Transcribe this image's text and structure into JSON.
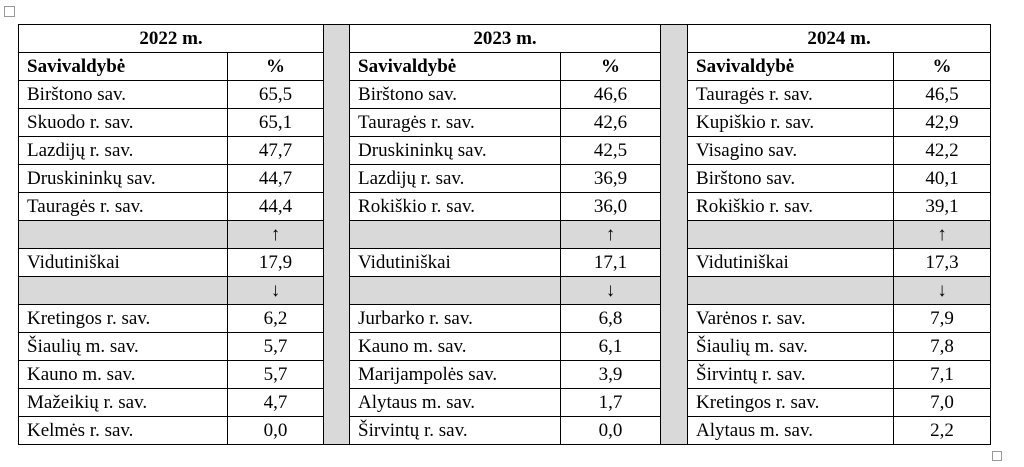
{
  "blocks": [
    {
      "year": "2022 m.",
      "headers": [
        "Savivaldybė",
        "%"
      ],
      "top": [
        [
          "Birštono sav.",
          "65,5"
        ],
        [
          "Skuodo r. sav.",
          "65,1"
        ],
        [
          "Lazdijų r. sav.",
          "47,7"
        ],
        [
          "Druskininkų sav.",
          "44,7"
        ],
        [
          "Tauragės r. sav.",
          "44,4"
        ]
      ],
      "arrow_up": "↑",
      "average": [
        "Vidutiniškai",
        "17,9"
      ],
      "arrow_down": "↓",
      "bottom": [
        [
          "Kretingos r. sav.",
          "6,2"
        ],
        [
          "Šiaulių m. sav.",
          "5,7"
        ],
        [
          "Kauno m. sav.",
          "5,7"
        ],
        [
          "Mažeikių r. sav.",
          "4,7"
        ],
        [
          "Kelmės r. sav.",
          "0,0"
        ]
      ]
    },
    {
      "year": "2023 m.",
      "headers": [
        "Savivaldybė",
        "%"
      ],
      "top": [
        [
          "Birštono sav.",
          "46,6"
        ],
        [
          "Tauragės r. sav.",
          "42,6"
        ],
        [
          "Druskininkų sav.",
          "42,5"
        ],
        [
          "Lazdijų r. sav.",
          "36,9"
        ],
        [
          "Rokiškio r. sav.",
          "36,0"
        ]
      ],
      "arrow_up": "↑",
      "average": [
        "Vidutiniškai",
        "17,1"
      ],
      "arrow_down": "↓",
      "bottom": [
        [
          "Jurbarko r. sav.",
          "6,8"
        ],
        [
          "Kauno m. sav.",
          "6,1"
        ],
        [
          "Marijampolės sav.",
          "3,9"
        ],
        [
          "Alytaus m. sav.",
          "1,7"
        ],
        [
          "Širvintų r. sav.",
          "0,0"
        ]
      ]
    },
    {
      "year": "2024 m.",
      "headers": [
        "Savivaldybė",
        "%"
      ],
      "top": [
        [
          "Tauragės r. sav.",
          "46,5"
        ],
        [
          "Kupiškio r. sav.",
          "42,9"
        ],
        [
          "Visagino sav.",
          "42,2"
        ],
        [
          "Birštono sav.",
          "40,1"
        ],
        [
          "Rokiškio r. sav.",
          "39,1"
        ]
      ],
      "arrow_up": "↑",
      "average": [
        "Vidutiniškai",
        "17,3"
      ],
      "arrow_down": "↓",
      "bottom": [
        [
          "Varėnos r. sav.",
          "7,9"
        ],
        [
          "Šiaulių m. sav.",
          "7,8"
        ],
        [
          "Širvintų r. sav.",
          "7,1"
        ],
        [
          "Kretingos r. sav.",
          "7,0"
        ],
        [
          "Alytaus m. sav.",
          "2,2"
        ]
      ]
    }
  ]
}
